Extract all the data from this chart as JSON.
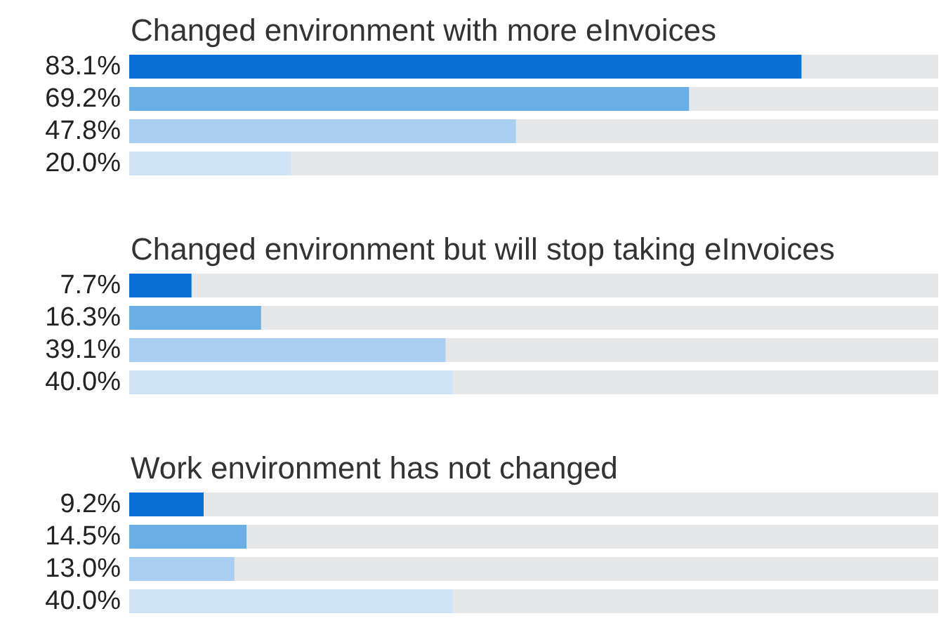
{
  "chart_data": [
    {
      "type": "bar",
      "orientation": "horizontal",
      "title": "Changed environment with more eInvoices",
      "categories": [
        null,
        null,
        null,
        null
      ],
      "values": [
        83.1,
        69.2,
        47.8,
        20.0
      ],
      "value_labels": [
        "83.1%",
        "69.2%",
        "47.8%",
        "20.0%"
      ],
      "colors": [
        "#0a6fd6",
        "#6aaee6",
        "#a9cef0",
        "#d0e4f7"
      ],
      "xlim": [
        0,
        100
      ],
      "tick_labels": false
    },
    {
      "type": "bar",
      "orientation": "horizontal",
      "title": "Changed environment but will stop taking eInvoices",
      "categories": [
        null,
        null,
        null,
        null
      ],
      "values": [
        7.7,
        16.3,
        39.1,
        40.0
      ],
      "value_labels": [
        "7.7%",
        "16.3%",
        "39.1%",
        "40.0%"
      ],
      "colors": [
        "#0a6fd6",
        "#6aaee6",
        "#a9cef0",
        "#d0e4f7"
      ],
      "xlim": [
        0,
        100
      ],
      "tick_labels": false
    },
    {
      "type": "bar",
      "orientation": "horizontal",
      "title": "Work environment has not changed",
      "categories": [
        null,
        null,
        null,
        null
      ],
      "values": [
        9.2,
        14.5,
        13.0,
        40.0
      ],
      "value_labels": [
        "9.2%",
        "14.5%",
        "13.0%",
        "40.0%"
      ],
      "colors": [
        "#0a6fd6",
        "#6aaee6",
        "#a9cef0",
        "#d0e4f7"
      ],
      "xlim": [
        0,
        100
      ],
      "tick_labels": false
    }
  ]
}
